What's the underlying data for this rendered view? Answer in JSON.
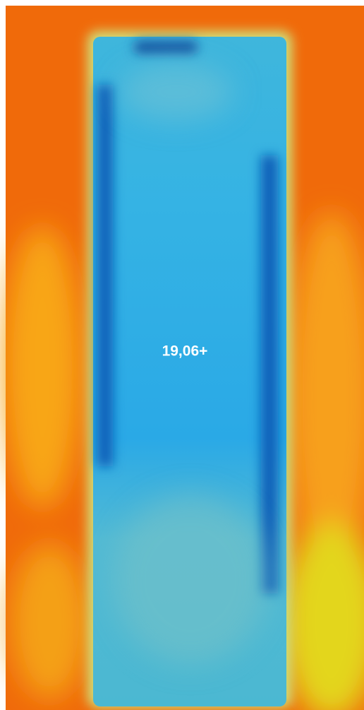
{
  "image": {
    "temperature_label": "19,06+"
  }
}
